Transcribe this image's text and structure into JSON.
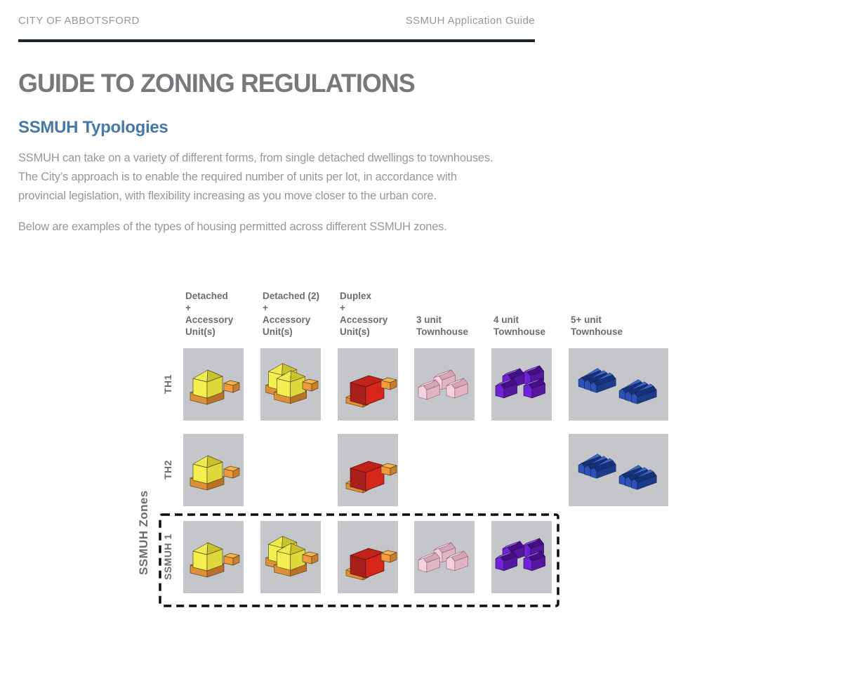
{
  "header": {
    "left": "CITY OF ABBOTSFORD",
    "right": "SSMUH Application Guide"
  },
  "page_title": "GUIDE TO ZONING REGULATIONS",
  "section_title": "SSMUH Typologies",
  "paragraphs": [
    {
      "lines": [
        "SSMUH can take on a variety of different forms, from single detached dwellings to townhouses.",
        "The City’s approach is to enable the required number of units per lot, in accordance with",
        "provincial legislation, with flexibility increasing as you move closer to the urban core."
      ]
    },
    {
      "lines": [
        "Below are examples of the types of housing permitted across different SSMUH zones."
      ]
    }
  ],
  "matrix": {
    "axis_label": "SSMUH Zones",
    "columns": [
      {
        "label_lines": [
          "Detached",
          "+",
          "Accessory",
          "Unit(s)"
        ]
      },
      {
        "label_lines": [
          "Detached (2)",
          "+",
          "Accessory",
          "Unit(s)"
        ]
      },
      {
        "label_lines": [
          "Duplex",
          "+",
          "Accessory",
          "Unit(s)"
        ]
      },
      {
        "label_lines": [
          "3 unit",
          "Townhouse"
        ]
      },
      {
        "label_lines": [
          "4 unit",
          "Townhouse"
        ]
      },
      {
        "label_lines": [
          "5+ unit",
          "Townhouse"
        ]
      }
    ],
    "rows": [
      {
        "label": "TH1",
        "highlighted": false,
        "cells": [
          "detached",
          "detached2",
          "duplex",
          "townhouse3",
          "townhouse4",
          "townhouse5"
        ]
      },
      {
        "label": "TH2",
        "highlighted": false,
        "cells": [
          "detached",
          null,
          "duplex",
          null,
          null,
          "townhouse5"
        ]
      },
      {
        "label": "SSMUH 1",
        "highlighted": true,
        "cells": [
          "detached",
          "detached2",
          "duplex",
          "townhouse3",
          "townhouse4",
          null
        ]
      }
    ]
  },
  "colors": {
    "accent_blue": "#4779a6",
    "heading_gray": "#77787b",
    "body_gray": "#96979a",
    "label_gray": "#6b6c6f",
    "rule_navy": "#1b2530",
    "cell_bg": "#c5c6ca",
    "typology_yellow": "#f2ef4e",
    "typology_orange": "#ef9b3d",
    "typology_red": "#d6261c",
    "typology_pink": "#f4d2dd",
    "typology_purple": "#6f23d4",
    "typology_blue": "#2d51b4",
    "highlight_border": "#0d0d0d"
  }
}
